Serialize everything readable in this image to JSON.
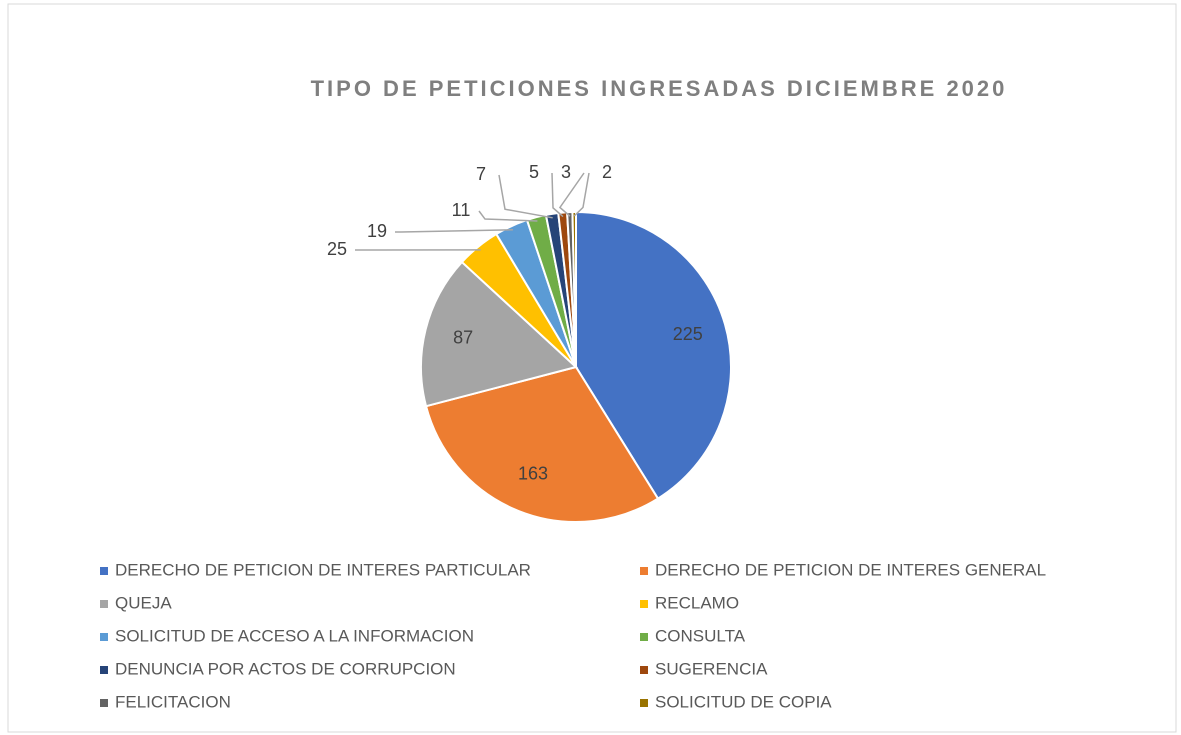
{
  "chart_data": {
    "type": "pie",
    "title": "TIPO DE PETICIONES INGRESADAS DICIEMBRE 2020",
    "categories": [
      "DERECHO DE PETICION DE INTERES PARTICULAR",
      "DERECHO DE PETICION DE INTERES GENERAL",
      "QUEJA",
      "RECLAMO",
      "SOLICITUD DE ACCESO A LA INFORMACION",
      "CONSULTA",
      "DENUNCIA POR ACTOS DE CORRUPCION",
      "SUGERENCIA",
      "FELICITACION",
      "SOLICITUD DE COPIA"
    ],
    "values": [
      225,
      163,
      87,
      25,
      19,
      11,
      7,
      5,
      3,
      2
    ],
    "colors": [
      "#4472c4",
      "#ed7d31",
      "#a5a5a5",
      "#ffc000",
      "#5b9bd5",
      "#70ad47",
      "#264478",
      "#9e480e",
      "#636363",
      "#997300"
    ]
  }
}
